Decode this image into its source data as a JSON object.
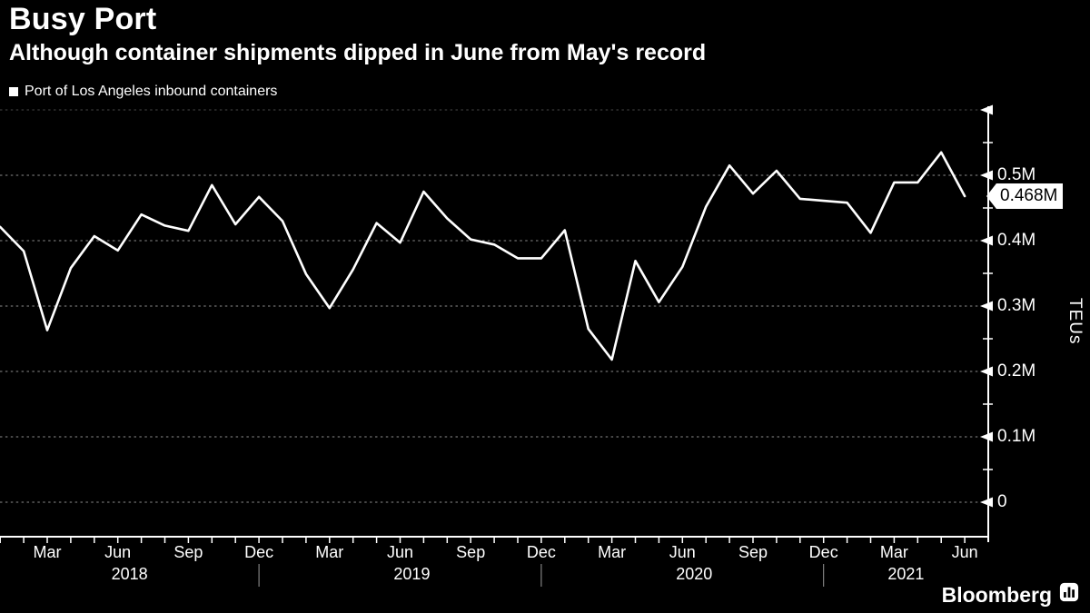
{
  "header": {
    "title": "Busy Port",
    "subtitle": "Although container shipments dipped in June from May's record"
  },
  "legend": {
    "label": "Port of Los Angeles inbound containers"
  },
  "y_axis": {
    "title": "TEUs",
    "callout_label": "0.468M"
  },
  "branding": {
    "name": "Bloomberg"
  },
  "chart_data": {
    "type": "line",
    "title": "Busy Port",
    "subtitle": "Although container shipments dipped in June from May's record",
    "series_name": "Port of Los Angeles inbound containers",
    "unit": "TEUs (millions)",
    "line_color": "#ffffff",
    "background_color": "#000000",
    "grid": "dotted horizontal",
    "legend_position": "top-left",
    "ylim": [
      0,
      0.6
    ],
    "x": [
      "Jan 2018",
      "Feb 2018",
      "Mar 2018",
      "Apr 2018",
      "May 2018",
      "Jun 2018",
      "Jul 2018",
      "Aug 2018",
      "Sep 2018",
      "Oct 2018",
      "Nov 2018",
      "Dec 2018",
      "Jan 2019",
      "Feb 2019",
      "Mar 2019",
      "Apr 2019",
      "May 2019",
      "Jun 2019",
      "Jul 2019",
      "Aug 2019",
      "Sep 2019",
      "Oct 2019",
      "Nov 2019",
      "Dec 2019",
      "Jan 2020",
      "Feb 2020",
      "Mar 2020",
      "Apr 2020",
      "May 2020",
      "Jun 2020",
      "Jul 2020",
      "Aug 2020",
      "Sep 2020",
      "Oct 2020",
      "Nov 2020",
      "Dec 2020",
      "Jan 2021",
      "Feb 2021",
      "Mar 2021",
      "Apr 2021",
      "May 2021",
      "Jun 2021"
    ],
    "values": [
      0.421,
      0.384,
      0.263,
      0.358,
      0.407,
      0.385,
      0.44,
      0.423,
      0.415,
      0.485,
      0.425,
      0.467,
      0.43,
      0.349,
      0.297,
      0.356,
      0.427,
      0.397,
      0.475,
      0.434,
      0.402,
      0.394,
      0.373,
      0.373,
      0.416,
      0.265,
      0.218,
      0.369,
      0.306,
      0.36,
      0.452,
      0.515,
      0.472,
      0.507,
      0.464,
      0.461,
      0.458,
      0.412,
      0.489,
      0.489,
      0.535,
      0.468
    ],
    "last_point_callout": {
      "x": "Jun 2021",
      "value": 0.468,
      "label": "0.468M"
    },
    "y_ticks": [
      {
        "value": 0,
        "label": "0"
      },
      {
        "value": 0.1,
        "label": "0.1M"
      },
      {
        "value": 0.2,
        "label": "0.2M"
      },
      {
        "value": 0.3,
        "label": "0.3M"
      },
      {
        "value": 0.4,
        "label": "0.4M"
      },
      {
        "value": 0.5,
        "label": "0.5M"
      },
      {
        "value": 0.6,
        "label": ""
      }
    ],
    "y_minor_ticks": [
      0.05,
      0.15,
      0.25,
      0.35,
      0.45,
      0.55
    ],
    "x_tick_labels": [
      {
        "label": "Mar",
        "month": 2
      },
      {
        "label": "Jun",
        "month": 5
      },
      {
        "label": "Sep",
        "month": 8
      },
      {
        "label": "Dec",
        "month": 11
      },
      {
        "label": "Mar",
        "month": 14
      },
      {
        "label": "Jun",
        "month": 17
      },
      {
        "label": "Sep",
        "month": 20
      },
      {
        "label": "Dec",
        "month": 23
      },
      {
        "label": "Mar",
        "month": 26
      },
      {
        "label": "Jun",
        "month": 29
      },
      {
        "label": "Sep",
        "month": 32
      },
      {
        "label": "Dec",
        "month": 35
      },
      {
        "label": "Mar",
        "month": 38
      },
      {
        "label": "Jun",
        "month": 41
      }
    ],
    "year_labels": [
      {
        "label": "2018",
        "start": 0,
        "end": 11
      },
      {
        "label": "2019",
        "start": 12,
        "end": 23
      },
      {
        "label": "2020",
        "start": 24,
        "end": 35
      },
      {
        "label": "2021",
        "start": 36,
        "end": 41
      }
    ],
    "year_separator_month_index": [
      11,
      23,
      35
    ],
    "colors": {
      "gridline": "#8c8c8c",
      "faint_gridline": "#474747",
      "axis": "#ffffff"
    }
  }
}
